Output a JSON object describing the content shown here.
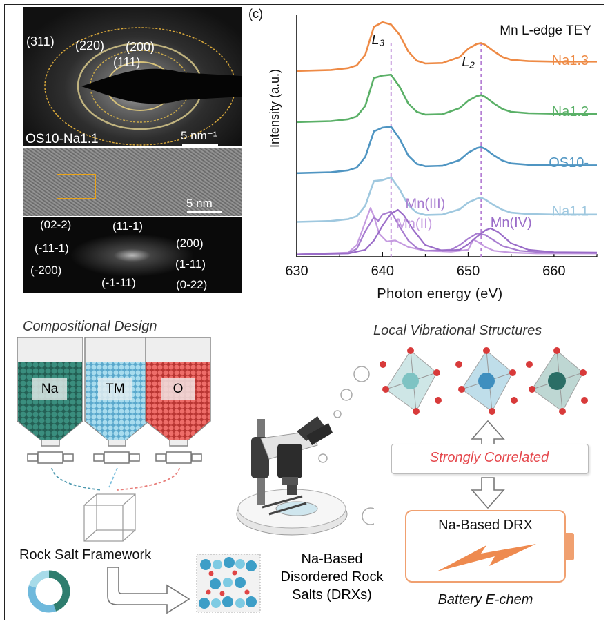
{
  "saed": {
    "rings": [
      "(311)",
      "(220)",
      "(200)",
      "(111)"
    ],
    "sample": "OS10-Na1.1",
    "scale": "5 nm⁻¹"
  },
  "hrtem": {
    "scale": "5 nm"
  },
  "fft": {
    "spots": [
      "(02-2)",
      "(11-1)",
      "(200)",
      "(-11-1)",
      "(1-11)",
      "(-200)",
      "(-1-11)",
      "(0-22)"
    ]
  },
  "chart_data": {
    "type": "line",
    "panel_label": "(c)",
    "title": "Mn L-edge TEY",
    "xlabel": "Photon energy (eV)",
    "ylabel": "Intensity (a.u.)",
    "xlim": [
      630,
      665
    ],
    "xticks": [
      630,
      640,
      650,
      660
    ],
    "edge_labels": {
      "L3": "L₃",
      "L2": "L₂"
    },
    "reference_lines_eV": [
      641,
      651.5
    ],
    "series": [
      {
        "name": "Na1.3",
        "color": "#ee8a45",
        "offset": 4.0,
        "x": [
          630,
          634,
          636,
          637,
          638,
          639,
          640,
          641,
          642,
          643,
          644,
          645,
          647,
          649,
          650,
          651,
          651.5,
          652,
          653,
          654,
          655,
          657,
          660,
          665
        ],
        "y": [
          0,
          0.02,
          0.06,
          0.12,
          0.35,
          0.95,
          1.05,
          1.0,
          0.78,
          0.42,
          0.22,
          0.16,
          0.17,
          0.3,
          0.48,
          0.58,
          0.6,
          0.56,
          0.42,
          0.3,
          0.24,
          0.21,
          0.2,
          0.2
        ]
      },
      {
        "name": "Na1.2",
        "color": "#5ab067",
        "offset": 2.9,
        "x": [
          630,
          634,
          636,
          637,
          638,
          639,
          640,
          641,
          642,
          643,
          644,
          645,
          647,
          649,
          650,
          651,
          651.5,
          652,
          653,
          654,
          655,
          657,
          660,
          665
        ],
        "y": [
          0,
          0.02,
          0.06,
          0.12,
          0.35,
          0.95,
          1.0,
          1.02,
          0.76,
          0.4,
          0.22,
          0.16,
          0.17,
          0.3,
          0.46,
          0.56,
          0.58,
          0.54,
          0.4,
          0.28,
          0.22,
          0.19,
          0.18,
          0.18
        ]
      },
      {
        "name": "OS10-",
        "color": "#4f95c2",
        "offset": 1.8,
        "x": [
          630,
          634,
          636,
          637,
          638,
          639,
          640,
          641,
          642,
          643,
          644,
          645,
          647,
          649,
          650,
          651,
          651.5,
          652,
          653,
          654,
          655,
          657,
          660,
          665
        ],
        "y": [
          0,
          0.02,
          0.06,
          0.12,
          0.35,
          0.9,
          0.98,
          1.0,
          0.74,
          0.38,
          0.2,
          0.15,
          0.16,
          0.28,
          0.44,
          0.54,
          0.56,
          0.52,
          0.38,
          0.27,
          0.21,
          0.18,
          0.17,
          0.17
        ]
      },
      {
        "name": "Na1.1",
        "color": "#9fc8df",
        "offset": 0.75,
        "x": [
          630,
          634,
          636,
          637,
          638,
          639,
          640,
          641,
          642,
          643,
          644,
          645,
          647,
          649,
          650,
          651,
          651.5,
          652,
          653,
          654,
          655,
          657,
          660,
          665
        ],
        "y": [
          0,
          0.02,
          0.06,
          0.12,
          0.35,
          0.88,
          0.9,
          0.96,
          0.7,
          0.36,
          0.2,
          0.15,
          0.16,
          0.27,
          0.42,
          0.5,
          0.52,
          0.48,
          0.36,
          0.26,
          0.2,
          0.17,
          0.16,
          0.16
        ]
      }
    ],
    "references": [
      {
        "name": "Mn(II)",
        "color": "#c59be0",
        "x": [
          630,
          636,
          637,
          638,
          638.6,
          639,
          639.6,
          640.5,
          641.5,
          643,
          645,
          648,
          650,
          650.6,
          651.2,
          652,
          653,
          655,
          658,
          665
        ],
        "y": [
          0,
          0.04,
          0.2,
          0.7,
          1.0,
          0.82,
          0.45,
          0.28,
          0.3,
          0.16,
          0.08,
          0.06,
          0.1,
          0.32,
          0.26,
          0.16,
          0.08,
          0.04,
          0.02,
          0.02
        ]
      },
      {
        "name": "Mn(III)",
        "color": "#a77cd0",
        "x": [
          630,
          636,
          637,
          638,
          639,
          639.5,
          640,
          641,
          642,
          643,
          644,
          645,
          648,
          649,
          650,
          651,
          652,
          653,
          654,
          656,
          659,
          665
        ],
        "y": [
          0,
          0.03,
          0.12,
          0.5,
          0.8,
          0.72,
          0.86,
          0.92,
          0.6,
          0.3,
          0.14,
          0.08,
          0.1,
          0.2,
          0.34,
          0.45,
          0.42,
          0.3,
          0.18,
          0.08,
          0.04,
          0.03
        ]
      },
      {
        "name": "Mn(IV)",
        "color": "#9a6cc8",
        "x": [
          630,
          636,
          638,
          639,
          640,
          641,
          641.8,
          642.5,
          643.5,
          645,
          647,
          649,
          650,
          651,
          652,
          652.6,
          653.5,
          655,
          657,
          660,
          665
        ],
        "y": [
          0,
          0.02,
          0.1,
          0.3,
          0.62,
          0.88,
          0.96,
          0.84,
          0.55,
          0.2,
          0.08,
          0.1,
          0.22,
          0.38,
          0.52,
          0.56,
          0.48,
          0.24,
          0.1,
          0.05,
          0.04
        ]
      }
    ]
  },
  "design": {
    "title": "Compositional Design",
    "hoppers": [
      {
        "label": "Na",
        "color": "#2e7d6e"
      },
      {
        "label": "TM",
        "color": "#7fc0de"
      },
      {
        "label": "O",
        "color": "#e14a47"
      }
    ],
    "framework_label": "Rock Salt Framework",
    "drx_label": [
      "Na-Based",
      "Disordered Rock",
      "Salts (DRXs)"
    ]
  },
  "vibrational": {
    "title": "Local Vibrational Structures",
    "correlated": "Strongly Correlated",
    "battery_label": "Na-Based DRX",
    "battery_caption": "Battery E-chem"
  }
}
